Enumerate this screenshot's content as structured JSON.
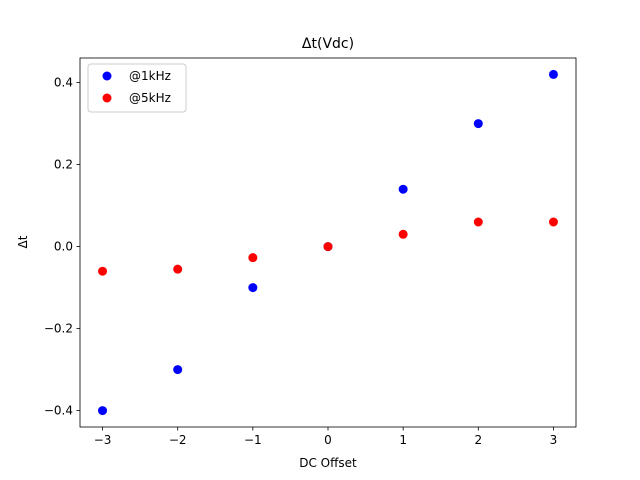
{
  "chart_data": {
    "type": "scatter",
    "title": "Δt(Vdc)",
    "xlabel": "DC Offset",
    "ylabel": "Δt",
    "xlim": [
      -3.3,
      3.3
    ],
    "ylim": [
      -0.44,
      0.46
    ],
    "xticks": [
      -3,
      -2,
      -1,
      0,
      1,
      2,
      3
    ],
    "xtick_labels": [
      "−3",
      "−2",
      "−1",
      "0",
      "1",
      "2",
      "3"
    ],
    "yticks": [
      -0.4,
      -0.2,
      0.0,
      0.2,
      0.4
    ],
    "ytick_labels": [
      "−0.4",
      "−0.2",
      "0.0",
      "0.2",
      "0.4"
    ],
    "grid": false,
    "legend_position": "top-left",
    "series": [
      {
        "name": "@1kHz",
        "color": "#0000ff",
        "x": [
          -3,
          -2,
          -1,
          0,
          1,
          2,
          3
        ],
        "y": [
          -0.4,
          -0.3,
          -0.1,
          0.0,
          0.14,
          0.3,
          0.42
        ]
      },
      {
        "name": "@5kHz",
        "color": "#ff0000",
        "x": [
          -3,
          -2,
          -1,
          0,
          1,
          2,
          3
        ],
        "y": [
          -0.06,
          -0.055,
          -0.027,
          0.0,
          0.03,
          0.06,
          0.06
        ]
      }
    ]
  }
}
